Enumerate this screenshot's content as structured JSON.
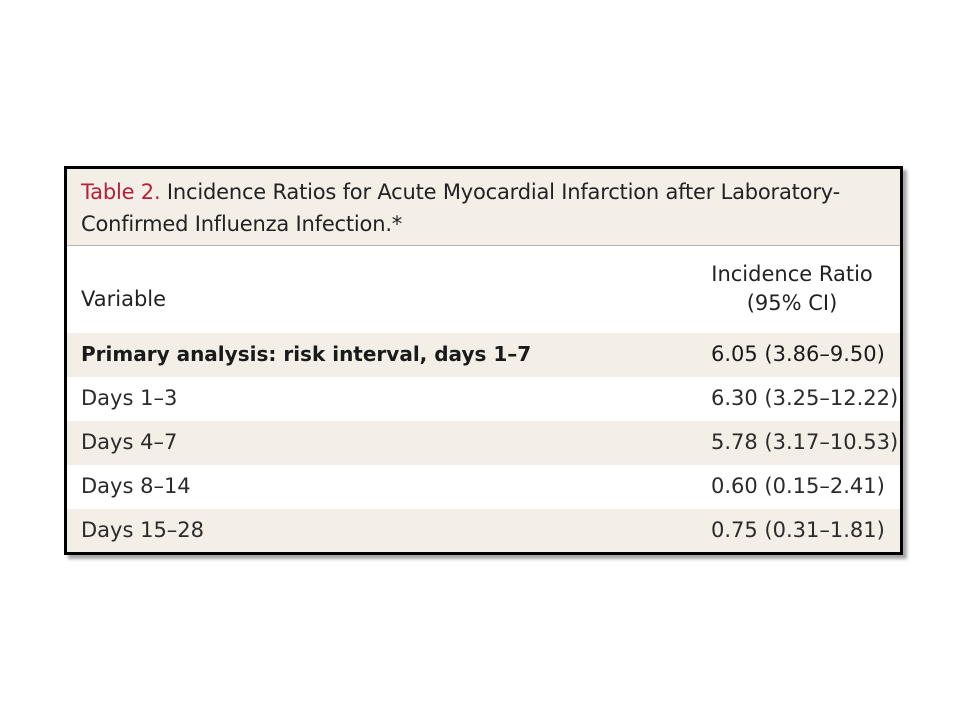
{
  "caption": {
    "table_number": "Table 2.",
    "title_line1": " Incidence Ratios for Acute Myocardial Infarction after Laboratory-",
    "title_line2": "Confirmed Influenza Infection.*"
  },
  "header": {
    "variable": "Variable",
    "ratio_line1": "Incidence Ratio",
    "ratio_line2": "(95% CI)"
  },
  "rows": [
    {
      "label": "Primary analysis: risk interval, days 1–7",
      "value": "6.05 (3.86–9.50)"
    },
    {
      "label": "Days 1–3",
      "value": "6.30 (3.25–12.22)"
    },
    {
      "label": "Days 4–7",
      "value": "5.78 (3.17–10.53)"
    },
    {
      "label": "Days 8–14",
      "value": "0.60 (0.15–2.41)"
    },
    {
      "label": "Days 15–28",
      "value": "0.75 (0.31–1.81)"
    }
  ],
  "colors": {
    "table_number": "#b5203a",
    "shaded_row": "#f3eee6",
    "border": "#000000"
  }
}
